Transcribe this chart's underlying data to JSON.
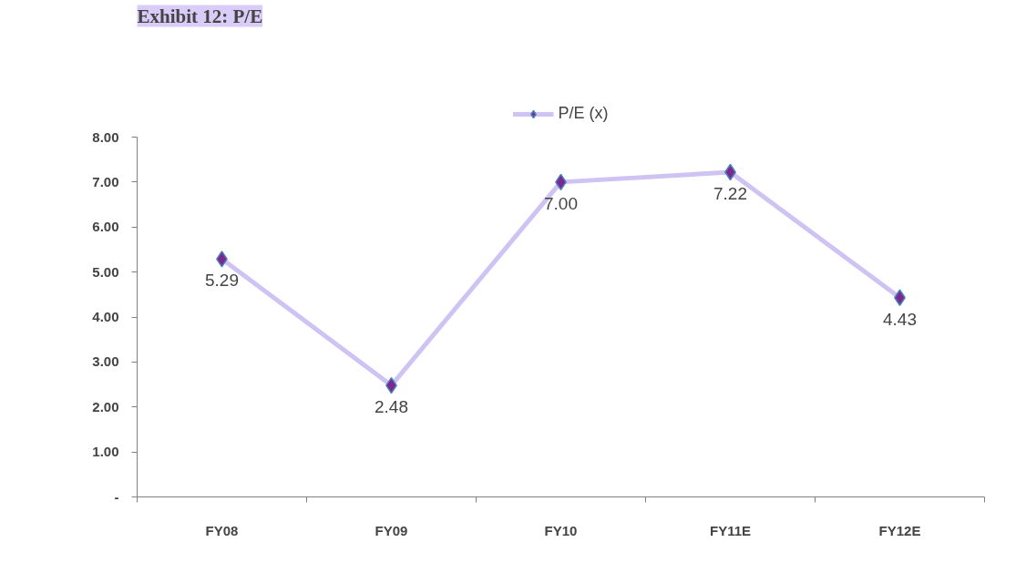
{
  "chart_data": {
    "type": "line",
    "title": "Exhibit 12: P/E",
    "categories": [
      "FY08",
      "FY09",
      "FY10",
      "FY11E",
      "FY12E"
    ],
    "series": [
      {
        "name": "P/E (x)",
        "color": "#cfc3f3",
        "values": [
          5.29,
          2.48,
          7.0,
          7.22,
          4.43
        ],
        "value_labels": [
          "5.29",
          "2.48",
          "7.00",
          "7.22",
          "4.43"
        ]
      }
    ],
    "ylim": [
      0,
      8
    ],
    "yticks": [
      {
        "value": 0,
        "label": "-"
      },
      {
        "value": 1,
        "label": "1.00"
      },
      {
        "value": 2,
        "label": "2.00"
      },
      {
        "value": 3,
        "label": "3.00"
      },
      {
        "value": 4,
        "label": "4.00"
      },
      {
        "value": 5,
        "label": "5.00"
      },
      {
        "value": 6,
        "label": "6.00"
      },
      {
        "value": 7,
        "label": "7.00"
      },
      {
        "value": 8,
        "label": "8.00"
      }
    ],
    "grid": false,
    "legend": "top",
    "marker": "diamond",
    "line_style": "solid"
  }
}
